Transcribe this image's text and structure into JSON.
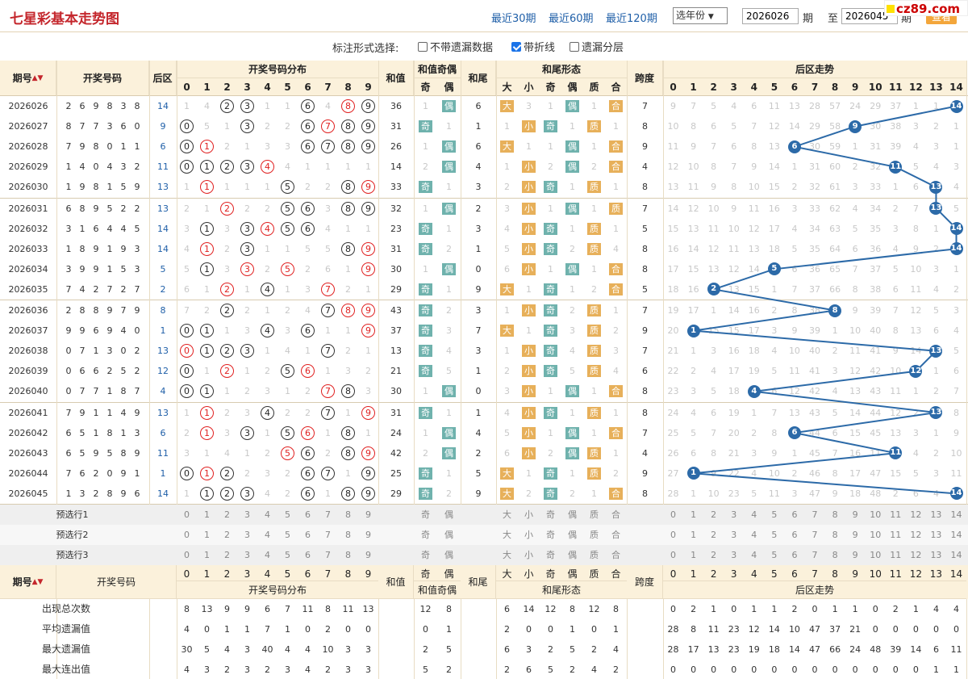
{
  "header": {
    "title": "七星彩基本走势图",
    "links": [
      "最近30期",
      "最近60期",
      "最近120期"
    ],
    "year_select": "选年份",
    "from_issue": "2026026",
    "to_label": "期",
    "from_to": "至",
    "to_issue": "2026045",
    "to_label2": "期",
    "query": "查看",
    "logo": "cz89.com"
  },
  "options": {
    "label": "标注形式选择:",
    "items": [
      {
        "label": "不带遗漏数据",
        "checked": false
      },
      {
        "label": "带折线",
        "checked": true
      },
      {
        "label": "遗漏分层",
        "checked": false
      }
    ]
  },
  "columns": {
    "issue": "期号",
    "draw": "开奖号码",
    "back": "后区",
    "dist": "开奖号码分布",
    "sum": "和值",
    "sum_parity": "和值奇偶",
    "odd": "奇",
    "even": "偶",
    "tail": "和尾",
    "tail_shape": "和尾形态",
    "big": "大",
    "small": "小",
    "prime": "质",
    "composite": "合",
    "span": "跨度",
    "back_trend": "后区走势"
  },
  "rows": [
    {
      "issue": "2026026",
      "nums": [
        2,
        6,
        9,
        8,
        3,
        8
      ],
      "back": 14,
      "dist": [
        "1",
        "4",
        "②",
        "③",
        "1",
        "1",
        "⑥",
        "4",
        "⑧",
        "⑨"
      ],
      "sum": 36,
      "sp": [
        "1",
        "偶"
      ],
      "tail": 6,
      "ts": [
        "大",
        "3",
        "1",
        "偶",
        "1",
        "合"
      ],
      "span": 7,
      "bt": [
        "9",
        "7",
        "5",
        "4",
        "6",
        "11",
        "13",
        "28",
        "57",
        "24",
        "29",
        "37",
        "1",
        "1",
        "14"
      ]
    },
    {
      "issue": "2026027",
      "nums": [
        8,
        7,
        7,
        3,
        6,
        0
      ],
      "back": 9,
      "dist": [
        "⓪",
        "5",
        "1",
        "③",
        "2",
        "2",
        "⑥",
        "⑦",
        "⑧",
        "⑨"
      ],
      "sum": 31,
      "sp": [
        "奇",
        "1"
      ],
      "tail": 1,
      "ts": [
        "1",
        "小",
        "奇",
        "1",
        "质",
        "1"
      ],
      "span": 8,
      "bt": [
        "10",
        "8",
        "6",
        "5",
        "7",
        "12",
        "14",
        "29",
        "58",
        "9",
        "30",
        "38",
        "3",
        "2",
        "1"
      ]
    },
    {
      "issue": "2026028",
      "nums": [
        7,
        9,
        8,
        0,
        1,
        1
      ],
      "back": 6,
      "dist": [
        "⓪",
        "①",
        "2",
        "1",
        "3",
        "3",
        "⑥",
        "⑦",
        "⑧",
        "⑨"
      ],
      "sum": 26,
      "sp": [
        "1",
        "偶"
      ],
      "tail": 6,
      "ts": [
        "大",
        "1",
        "1",
        "偶",
        "1",
        "合"
      ],
      "span": 9,
      "bt": [
        "11",
        "9",
        "7",
        "6",
        "8",
        "13",
        "6",
        "30",
        "59",
        "1",
        "31",
        "39",
        "4",
        "3",
        "1"
      ]
    },
    {
      "issue": "2026029",
      "nums": [
        1,
        4,
        0,
        4,
        3,
        2
      ],
      "back": 11,
      "dist": [
        "⓪",
        "①",
        "②",
        "③",
        "④",
        "4",
        "1",
        "1",
        "1",
        "1"
      ],
      "sum": 14,
      "sp": [
        "2",
        "偶"
      ],
      "tail": 4,
      "ts": [
        "1",
        "小",
        "2",
        "偶",
        "2",
        "合"
      ],
      "span": 4,
      "bt": [
        "12",
        "10",
        "8",
        "7",
        "9",
        "14",
        "1",
        "31",
        "60",
        "2",
        "32",
        "11",
        "5",
        "4",
        "3"
      ]
    },
    {
      "issue": "2026030",
      "nums": [
        1,
        9,
        8,
        1,
        5,
        9
      ],
      "back": 13,
      "dist": [
        "1",
        "①",
        "1",
        "1",
        "1",
        "⑤",
        "2",
        "2",
        "⑧",
        "⑨"
      ],
      "sum": 33,
      "sp": [
        "奇",
        "1"
      ],
      "tail": 3,
      "ts": [
        "2",
        "小",
        "奇",
        "1",
        "质",
        "1"
      ],
      "span": 8,
      "bt": [
        "13",
        "11",
        "9",
        "8",
        "10",
        "15",
        "2",
        "32",
        "61",
        "3",
        "33",
        "1",
        "6",
        "13",
        "4"
      ]
    },
    {
      "issue": "2026031",
      "nums": [
        6,
        8,
        9,
        5,
        2,
        2
      ],
      "back": 13,
      "dist": [
        "2",
        "1",
        "②",
        "2",
        "2",
        "⑤",
        "⑥",
        "3",
        "⑧",
        "⑨"
      ],
      "sum": 32,
      "sp": [
        "1",
        "偶"
      ],
      "tail": 2,
      "ts": [
        "3",
        "小",
        "1",
        "偶",
        "1",
        "质"
      ],
      "span": 7,
      "bt": [
        "14",
        "12",
        "10",
        "9",
        "11",
        "16",
        "3",
        "33",
        "62",
        "4",
        "34",
        "2",
        "7",
        "13",
        "5"
      ]
    },
    {
      "issue": "2026032",
      "nums": [
        3,
        1,
        6,
        4,
        4,
        5
      ],
      "back": 14,
      "dist": [
        "3",
        "①",
        "3",
        "③",
        "④",
        "⑤",
        "⑥",
        "4",
        "1",
        "1"
      ],
      "sum": 23,
      "sp": [
        "奇",
        "1"
      ],
      "tail": 3,
      "ts": [
        "4",
        "小",
        "奇",
        "1",
        "质",
        "1"
      ],
      "span": 5,
      "bt": [
        "15",
        "13",
        "11",
        "10",
        "12",
        "17",
        "4",
        "34",
        "63",
        "5",
        "35",
        "3",
        "8",
        "1",
        "14"
      ]
    },
    {
      "issue": "2026033",
      "nums": [
        1,
        8,
        9,
        1,
        9,
        3
      ],
      "back": 14,
      "dist": [
        "4",
        "①",
        "2",
        "③",
        "1",
        "1",
        "5",
        "5",
        "⑧",
        "⑨"
      ],
      "sum": 31,
      "sp": [
        "奇",
        "2"
      ],
      "tail": 1,
      "ts": [
        "5",
        "小",
        "奇",
        "2",
        "质",
        "4"
      ],
      "span": 8,
      "bt": [
        "16",
        "14",
        "12",
        "11",
        "13",
        "18",
        "5",
        "35",
        "64",
        "6",
        "36",
        "4",
        "9",
        "2",
        "14"
      ]
    },
    {
      "issue": "2026034",
      "nums": [
        3,
        9,
        9,
        1,
        5,
        3
      ],
      "back": 5,
      "dist": [
        "5",
        "①",
        "3",
        "③",
        "2",
        "⑤",
        "2",
        "6",
        "1",
        "⑨"
      ],
      "sum": 30,
      "sp": [
        "1",
        "偶"
      ],
      "tail": 0,
      "ts": [
        "6",
        "小",
        "1",
        "偶",
        "1",
        "合"
      ],
      "span": 8,
      "bt": [
        "17",
        "15",
        "13",
        "12",
        "14",
        "5",
        "6",
        "36",
        "65",
        "7",
        "37",
        "5",
        "10",
        "3",
        "1"
      ]
    },
    {
      "issue": "2026035",
      "nums": [
        7,
        4,
        2,
        7,
        2,
        7
      ],
      "back": 2,
      "dist": [
        "6",
        "1",
        "②",
        "1",
        "④",
        "1",
        "3",
        "⑦",
        "2",
        "1"
      ],
      "sum": 29,
      "sp": [
        "奇",
        "1"
      ],
      "tail": 9,
      "ts": [
        "大",
        "1",
        "奇",
        "1",
        "2",
        "合"
      ],
      "span": 5,
      "bt": [
        "18",
        "16",
        "2",
        "13",
        "15",
        "1",
        "7",
        "37",
        "66",
        "8",
        "38",
        "6",
        "11",
        "4",
        "2"
      ]
    },
    {
      "issue": "2026036",
      "nums": [
        2,
        8,
        8,
        9,
        7,
        9
      ],
      "back": 8,
      "dist": [
        "7",
        "2",
        "②",
        "2",
        "1",
        "2",
        "4",
        "⑦",
        "⑧",
        "⑨"
      ],
      "sum": 43,
      "sp": [
        "奇",
        "2"
      ],
      "tail": 3,
      "ts": [
        "1",
        "小",
        "奇",
        "2",
        "质",
        "1"
      ],
      "span": 7,
      "bt": [
        "19",
        "17",
        "1",
        "14",
        "16",
        "2",
        "8",
        "38",
        "8",
        "9",
        "39",
        "7",
        "12",
        "5",
        "3"
      ]
    },
    {
      "issue": "2026037",
      "nums": [
        9,
        9,
        6,
        9,
        4,
        0
      ],
      "back": 1,
      "dist": [
        "⓪",
        "①",
        "1",
        "3",
        "④",
        "3",
        "⑥",
        "1",
        "1",
        "⑨"
      ],
      "sum": 37,
      "sp": [
        "奇",
        "3"
      ],
      "tail": 7,
      "ts": [
        "大",
        "1",
        "奇",
        "3",
        "质",
        "2"
      ],
      "span": 9,
      "bt": [
        "20",
        "1",
        "15",
        "15",
        "17",
        "3",
        "9",
        "39",
        "1",
        "10",
        "40",
        "8",
        "13",
        "6",
        "4"
      ]
    },
    {
      "issue": "2026038",
      "nums": [
        0,
        7,
        1,
        3,
        0,
        2
      ],
      "back": 13,
      "dist": [
        "⓪",
        "①",
        "②",
        "③",
        "1",
        "4",
        "1",
        "⑦",
        "2",
        "1"
      ],
      "sum": 13,
      "sp": [
        "奇",
        "4"
      ],
      "tail": 3,
      "ts": [
        "1",
        "小",
        "奇",
        "4",
        "质",
        "3"
      ],
      "span": 7,
      "bt": [
        "21",
        "1",
        "3",
        "16",
        "18",
        "4",
        "10",
        "40",
        "2",
        "11",
        "41",
        "9",
        "14",
        "13",
        "5"
      ]
    },
    {
      "issue": "2026039",
      "nums": [
        0,
        6,
        6,
        2,
        5,
        2
      ],
      "back": 12,
      "dist": [
        "⓪",
        "1",
        "②",
        "1",
        "2",
        "⑤",
        "⑥",
        "1",
        "3",
        "2"
      ],
      "sum": 21,
      "sp": [
        "奇",
        "5"
      ],
      "tail": 1,
      "ts": [
        "2",
        "小",
        "奇",
        "5",
        "质",
        "4"
      ],
      "span": 6,
      "bt": [
        "22",
        "2",
        "4",
        "17",
        "19",
        "5",
        "11",
        "41",
        "3",
        "12",
        "42",
        "10",
        "12",
        "1",
        "6"
      ]
    },
    {
      "issue": "2026040",
      "nums": [
        0,
        7,
        7,
        1,
        8,
        7
      ],
      "back": 4,
      "dist": [
        "⓪",
        "①",
        "1",
        "2",
        "3",
        "1",
        "2",
        "⑦",
        "⑧",
        "3"
      ],
      "sum": 30,
      "sp": [
        "1",
        "偶"
      ],
      "tail": 0,
      "ts": [
        "3",
        "小",
        "1",
        "偶",
        "1",
        "合"
      ],
      "span": 8,
      "bt": [
        "23",
        "3",
        "5",
        "18",
        "4",
        "6",
        "12",
        "42",
        "4",
        "13",
        "43",
        "11",
        "1",
        "2",
        "7"
      ]
    },
    {
      "issue": "2026041",
      "nums": [
        7,
        9,
        1,
        1,
        4,
        9
      ],
      "back": 13,
      "dist": [
        "1",
        "①",
        "2",
        "3",
        "④",
        "2",
        "2",
        "⑦",
        "1",
        "⑨"
      ],
      "sum": 31,
      "sp": [
        "奇",
        "1"
      ],
      "tail": 1,
      "ts": [
        "4",
        "小",
        "奇",
        "1",
        "质",
        "1"
      ],
      "span": 8,
      "bt": [
        "24",
        "4",
        "6",
        "19",
        "1",
        "7",
        "13",
        "43",
        "5",
        "14",
        "44",
        "12",
        "2",
        "13",
        "8"
      ]
    },
    {
      "issue": "2026042",
      "nums": [
        6,
        5,
        1,
        8,
        1,
        3
      ],
      "back": 6,
      "dist": [
        "2",
        "①",
        "3",
        "③",
        "1",
        "⑤",
        "⑥",
        "1",
        "⑧",
        "1"
      ],
      "sum": 24,
      "sp": [
        "1",
        "偶"
      ],
      "tail": 4,
      "ts": [
        "5",
        "小",
        "1",
        "偶",
        "1",
        "合"
      ],
      "span": 7,
      "bt": [
        "25",
        "5",
        "7",
        "20",
        "2",
        "8",
        "6",
        "44",
        "6",
        "15",
        "45",
        "13",
        "3",
        "1",
        "9"
      ]
    },
    {
      "issue": "2026043",
      "nums": [
        6,
        5,
        9,
        5,
        8,
        9
      ],
      "back": 11,
      "dist": [
        "3",
        "1",
        "4",
        "1",
        "2",
        "⑤",
        "⑥",
        "2",
        "⑧",
        "⑨"
      ],
      "sum": 42,
      "sp": [
        "2",
        "偶"
      ],
      "tail": 2,
      "ts": [
        "6",
        "小",
        "2",
        "偶",
        "质",
        "1"
      ],
      "span": 4,
      "bt": [
        "26",
        "6",
        "8",
        "21",
        "3",
        "9",
        "1",
        "45",
        "7",
        "16",
        "11",
        "14",
        "4",
        "2",
        "10"
      ]
    },
    {
      "issue": "2026044",
      "nums": [
        7,
        6,
        2,
        0,
        9,
        1
      ],
      "back": 1,
      "dist": [
        "⓪",
        "①",
        "②",
        "2",
        "3",
        "2",
        "⑥",
        "⑦",
        "1",
        "⑨"
      ],
      "sum": 25,
      "sp": [
        "奇",
        "1"
      ],
      "tail": 5,
      "ts": [
        "大",
        "1",
        "奇",
        "1",
        "质",
        "2"
      ],
      "span": 9,
      "bt": [
        "27",
        "1",
        "9",
        "22",
        "4",
        "10",
        "2",
        "46",
        "8",
        "17",
        "47",
        "15",
        "5",
        "3",
        "11"
      ]
    },
    {
      "issue": "2026045",
      "nums": [
        1,
        3,
        2,
        8,
        9,
        6
      ],
      "back": 14,
      "dist": [
        "1",
        "①",
        "②",
        "③",
        "4",
        "2",
        "⑥",
        "1",
        "⑧",
        "⑨"
      ],
      "sum": 29,
      "sp": [
        "奇",
        "2"
      ],
      "tail": 9,
      "ts": [
        "大",
        "2",
        "奇",
        "2",
        "1",
        "合"
      ],
      "span": 8,
      "bt": [
        "28",
        "1",
        "10",
        "23",
        "5",
        "11",
        "3",
        "47",
        "9",
        "18",
        "48",
        "2",
        "6",
        "4",
        "14"
      ]
    }
  ],
  "preselect": [
    "预选行1",
    "预选行2",
    "预选行3"
  ],
  "stats": [
    {
      "label": "出现总次数",
      "dist": [
        "8",
        "13",
        "9",
        "9",
        "6",
        "7",
        "11",
        "8",
        "11",
        "13"
      ],
      "sp": [
        "12",
        "8"
      ],
      "tail": "",
      "ts": [
        "6",
        "14",
        "12",
        "8",
        "12",
        "8"
      ],
      "span": "",
      "bt": [
        "0",
        "2",
        "1",
        "0",
        "1",
        "1",
        "2",
        "0",
        "1",
        "1",
        "0",
        "2",
        "1",
        "4",
        "4"
      ]
    },
    {
      "label": "平均遗漏值",
      "dist": [
        "4",
        "0",
        "1",
        "1",
        "7",
        "1",
        "0",
        "2",
        "0",
        "0"
      ],
      "sp": [
        "0",
        "1"
      ],
      "tail": "",
      "ts": [
        "2",
        "0",
        "0",
        "1",
        "0",
        "1"
      ],
      "span": "",
      "bt": [
        "28",
        "8",
        "11",
        "23",
        "12",
        "14",
        "10",
        "47",
        "37",
        "21",
        "0",
        "0",
        "0",
        "0",
        "0"
      ]
    },
    {
      "label": "最大遗漏值",
      "dist": [
        "30",
        "5",
        "4",
        "3",
        "40",
        "4",
        "4",
        "10",
        "3",
        "3"
      ],
      "sp": [
        "2",
        "5"
      ],
      "tail": "",
      "ts": [
        "6",
        "3",
        "2",
        "5",
        "2",
        "4"
      ],
      "span": "",
      "bt": [
        "28",
        "17",
        "13",
        "23",
        "19",
        "18",
        "14",
        "47",
        "66",
        "24",
        "48",
        "39",
        "14",
        "6",
        "11"
      ]
    },
    {
      "label": "最大连出值",
      "dist": [
        "4",
        "3",
        "2",
        "3",
        "2",
        "3",
        "4",
        "2",
        "3",
        "3"
      ],
      "sp": [
        "5",
        "2"
      ],
      "tail": "",
      "ts": [
        "2",
        "6",
        "5",
        "2",
        "4",
        "2"
      ],
      "span": "",
      "bt": [
        "0",
        "0",
        "0",
        "0",
        "0",
        "0",
        "0",
        "0",
        "0",
        "0",
        "0",
        "0",
        "0",
        "1",
        "1"
      ]
    }
  ],
  "colors": {
    "accent": "#c4262c",
    "link": "#1f5fa8",
    "header_bg": "#fbf1db",
    "odd_tag": "#6fb2ad",
    "orange_tag": "#e7b05a",
    "trend_ball": "#2c6aa8"
  }
}
